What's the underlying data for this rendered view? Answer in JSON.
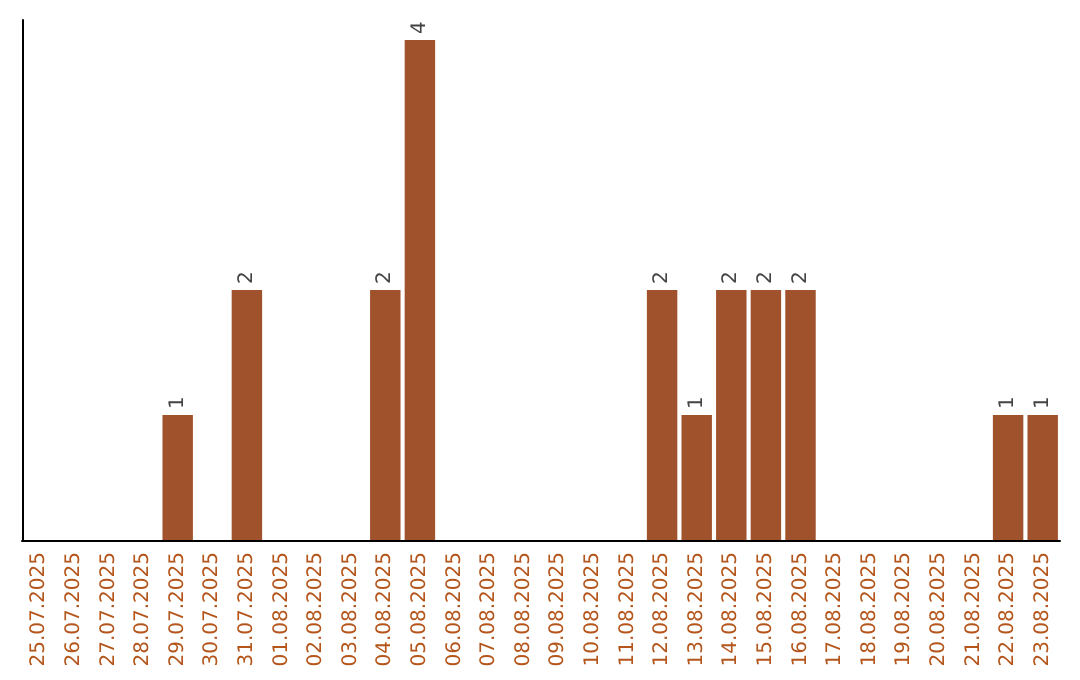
{
  "chart_data": {
    "type": "bar",
    "categories": [
      "25.07.2025",
      "26.07.2025",
      "27.07.2025",
      "28.07.2025",
      "29.07.2025",
      "30.07.2025",
      "31.07.2025",
      "01.08.2025",
      "02.08.2025",
      "03.08.2025",
      "04.08.2025",
      "05.08.2025",
      "06.08.2025",
      "07.08.2025",
      "08.08.2025",
      "09.08.2025",
      "10.08.2025",
      "11.08.2025",
      "12.08.2025",
      "13.08.2025",
      "14.08.2025",
      "15.08.2025",
      "16.08.2025",
      "17.08.2025",
      "18.08.2025",
      "19.08.2025",
      "20.08.2025",
      "21.08.2025",
      "22.08.2025",
      "23.08.2025"
    ],
    "values": [
      0,
      0,
      0,
      0,
      1,
      0,
      2,
      0,
      0,
      0,
      2,
      4,
      0,
      0,
      0,
      0,
      0,
      0,
      2,
      1,
      2,
      2,
      2,
      0,
      0,
      0,
      0,
      0,
      1,
      1
    ],
    "color": "#a0522d",
    "value_labels": [
      null,
      null,
      null,
      null,
      "1",
      null,
      "2",
      null,
      null,
      null,
      "2",
      "4",
      null,
      null,
      null,
      null,
      null,
      null,
      "2",
      "1",
      "2",
      "2",
      "2",
      null,
      null,
      null,
      null,
      null,
      "1",
      "1"
    ],
    "tick_labels": "x",
    "grid": false
  }
}
